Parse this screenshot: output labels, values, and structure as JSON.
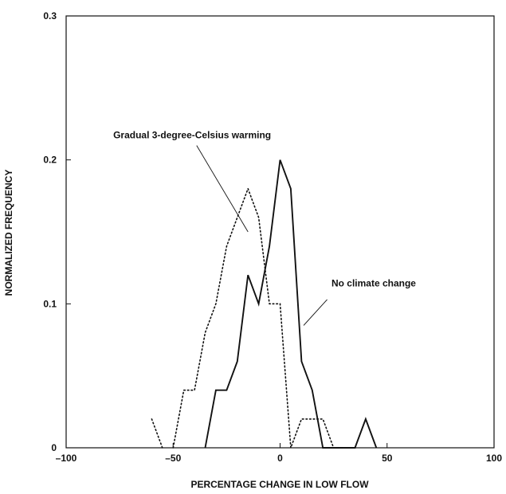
{
  "chart_data": {
    "type": "line",
    "title": "",
    "xlabel": "PERCENTAGE CHANGE IN LOW FLOW",
    "ylabel": "NORMALIZED FREQUENCY",
    "xlim": [
      -100,
      100
    ],
    "ylim": [
      0,
      0.3
    ],
    "x_ticks": [
      -100,
      -50,
      0,
      50,
      100
    ],
    "x_tick_labels": [
      "–100",
      "–50",
      "0",
      "50",
      "100"
    ],
    "y_ticks": [
      0,
      0.1,
      0.2,
      0.3
    ],
    "y_tick_labels": [
      "0",
      "0.1",
      "0.2",
      "0.3"
    ],
    "grid": false,
    "series": [
      {
        "style": "solid",
        "color": "#111111",
        "x": [
          -35,
          -30,
          -25,
          -20,
          -15,
          -10,
          -5,
          0,
          5,
          10,
          15,
          20,
          25,
          30,
          35,
          40,
          45
        ],
        "y": [
          0,
          0.04,
          0.04,
          0.06,
          0.12,
          0.1,
          0.14,
          0.2,
          0.18,
          0.06,
          0.04,
          0,
          0,
          0,
          0,
          0.02,
          0
        ]
      },
      {
        "style": "dotted",
        "color": "#111111",
        "segments": [
          {
            "x": [
              -60,
              -55
            ],
            "y": [
              0.02,
              0
            ]
          },
          {
            "x": [
              -50,
              -45,
              -40,
              -35,
              -30,
              -25,
              -20,
              -15,
              -10,
              -5,
              0,
              5,
              10,
              15,
              20,
              25,
              30
            ],
            "y": [
              0,
              0.04,
              0.04,
              0.08,
              0.1,
              0.14,
              0.16,
              0.18,
              0.16,
              0.1,
              0.1,
              0,
              0.02,
              0.02,
              0.02,
              0,
              0
            ]
          }
        ]
      }
    ],
    "annotations": [
      {
        "text": "Gradual 3-degree-Celsius warming",
        "x": -78,
        "y": 0.215,
        "leader_from": [
          -39,
          0.21
        ],
        "leader_to": [
          -15,
          0.15
        ]
      },
      {
        "text": "No climate change",
        "x": 24,
        "y": 0.112,
        "leader_from": [
          22,
          0.103
        ],
        "leader_to": [
          11,
          0.085
        ]
      }
    ]
  }
}
